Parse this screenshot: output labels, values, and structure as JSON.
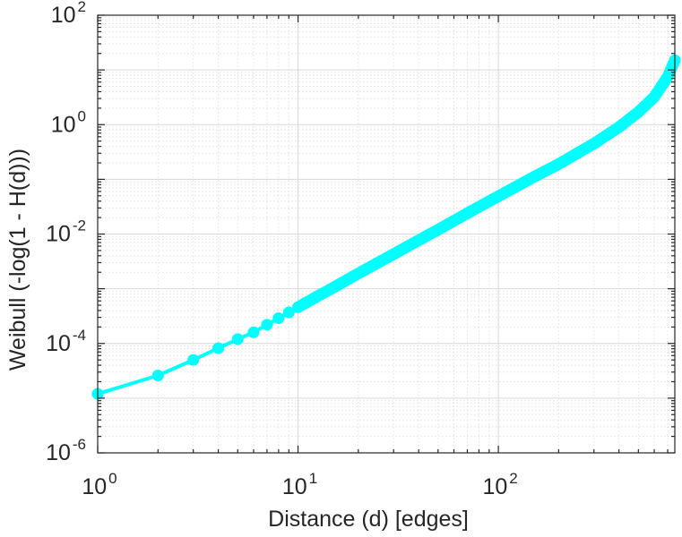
{
  "chart_data": {
    "type": "line",
    "xlabel": "Distance (d) [edges]",
    "ylabel": "Weibull (-log(1 - H(d)))",
    "xscale": "log",
    "yscale": "log",
    "xlim": [
      1,
      760
    ],
    "ylim": [
      1e-06,
      100
    ],
    "grid": true,
    "minor_grid": true,
    "marker": "circle",
    "line_color": "#00ffff",
    "xticks": [
      {
        "base": "10",
        "exp": "0",
        "value": 1
      },
      {
        "base": "10",
        "exp": "1",
        "value": 10
      },
      {
        "base": "10",
        "exp": "2",
        "value": 100
      }
    ],
    "yticks": [
      {
        "base": "10",
        "exp": "-6",
        "value": 1e-06
      },
      {
        "base": "10",
        "exp": "-4",
        "value": 0.0001
      },
      {
        "base": "10",
        "exp": "-2",
        "value": 0.01
      },
      {
        "base": "10",
        "exp": "0",
        "value": 1
      },
      {
        "base": "10",
        "exp": "2",
        "value": 100
      }
    ],
    "series": [
      {
        "x": [
          1,
          2,
          3,
          4,
          5,
          6,
          7,
          8,
          9,
          10,
          11,
          12,
          13,
          14,
          15,
          20,
          30,
          40,
          50,
          70,
          100,
          150,
          200,
          300,
          400,
          500,
          600,
          700,
          760
        ],
        "y": [
          1.2e-05,
          2.6e-05,
          5e-05,
          8.2e-05,
          0.00012,
          0.00016,
          0.00022,
          0.00029,
          0.00037,
          0.00046,
          0.00056,
          0.00067,
          0.00079,
          0.00091,
          0.00105,
          0.0019,
          0.0043,
          0.0077,
          0.012,
          0.024,
          0.049,
          0.11,
          0.19,
          0.45,
          0.9,
          1.7,
          3.2,
          7.5,
          15
        ]
      }
    ]
  }
}
